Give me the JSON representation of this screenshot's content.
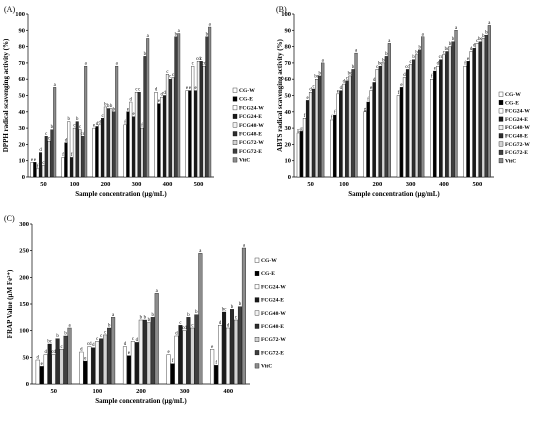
{
  "panel_labels": [
    "(A)",
    "(B)",
    "(C)"
  ],
  "legend": [
    "CG-W",
    "CG-E",
    "FCG24-W",
    "FCG24-E",
    "FCG48-W",
    "FCG48-E",
    "FCG72-W",
    "FCG72-E",
    "VitC"
  ],
  "colors": {
    "CG-W": "#ffffff",
    "CG-E": "#000000",
    "FCG24-W": "#ffffff",
    "FCG24-E": "#1a1a1a",
    "FCG48-W": "#f2f2f2",
    "FCG48-E": "#2e2e2e",
    "FCG72-W": "#d4d4d4",
    "FCG72-E": "#404040",
    "VitC": "#8c8c8c"
  },
  "chart_data": [
    {
      "type": "bar",
      "panel": "(A)",
      "xlabel": "Sample concentration (μg/mL)",
      "ylabel": "DPPH radical scavenging activity (%)",
      "categories": [
        "50",
        "100",
        "200",
        "300",
        "400",
        "500"
      ],
      "ylim": [
        0,
        100
      ],
      "yticks": [
        "0",
        "10",
        "20",
        "30",
        "40",
        "50",
        "60",
        "70",
        "80",
        "90",
        "100"
      ],
      "series": [
        {
          "name": "CG-W",
          "values": [
            9,
            12,
            30,
            32,
            52,
            53
          ],
          "letters": [
            "e",
            "f",
            "e",
            "f",
            "d",
            "e"
          ]
        },
        {
          "name": "CG-E",
          "values": [
            9,
            21,
            31,
            40,
            45,
            53
          ],
          "letters": [
            "e",
            "d",
            "d",
            "e",
            "e",
            "e"
          ]
        },
        {
          "name": "FCG24-W",
          "values": [
            5,
            34,
            32,
            46,
            49,
            68
          ],
          "letters": [
            "f",
            "b",
            "d",
            "d",
            "d",
            "c"
          ]
        },
        {
          "name": "FCG24-E",
          "values": [
            15,
            12,
            36,
            37,
            50,
            53
          ],
          "letters": [
            "d",
            "f",
            "c",
            "e",
            "d",
            "e"
          ]
        },
        {
          "name": "FCG48-W",
          "values": [
            7,
            30,
            43,
            52,
            63,
            71
          ],
          "letters": [
            "c",
            "c",
            "b",
            "c",
            "c",
            "cd"
          ]
        },
        {
          "name": "FCG48-E",
          "values": [
            25,
            34,
            42,
            52,
            60,
            71
          ],
          "letters": [
            "c",
            "b",
            "b",
            "c",
            "c",
            "c"
          ]
        },
        {
          "name": "FCG72-W",
          "values": [
            22,
            29,
            42,
            30,
            61,
            68
          ],
          "letters": [
            "c",
            "c",
            "b",
            "f",
            "c",
            "cd"
          ]
        },
        {
          "name": "FCG72-E",
          "values": [
            29,
            25,
            40,
            74,
            86,
            86
          ],
          "letters": [
            "b",
            "cd",
            "b",
            "b",
            "b",
            "b"
          ]
        },
        {
          "name": "VitC",
          "values": [
            55,
            68,
            68,
            85,
            88,
            92
          ],
          "letters": [
            "a",
            "a",
            "a",
            "a",
            "a",
            "a"
          ]
        }
      ]
    },
    {
      "type": "bar",
      "panel": "(B)",
      "xlabel": "Sample concentration (μg/mL)",
      "ylabel": "ABTS radical scavenging activity (%)",
      "categories": [
        "50",
        "100",
        "200",
        "300",
        "400",
        "500"
      ],
      "ylim": [
        0,
        100
      ],
      "yticks": [
        "0",
        "10",
        "20",
        "30",
        "40",
        "50",
        "60",
        "70",
        "80",
        "90",
        "100"
      ],
      "series": [
        {
          "name": "CG-W",
          "values": [
            27,
            35,
            40,
            50,
            60,
            68
          ],
          "letters": [
            "g",
            "f",
            "g",
            "f",
            "f",
            "f"
          ]
        },
        {
          "name": "CG-E",
          "values": [
            28,
            38,
            46,
            55,
            65,
            71
          ],
          "letters": [
            "g",
            "f",
            "f",
            "e",
            "e",
            "e"
          ]
        },
        {
          "name": "FCG24-W",
          "values": [
            36,
            51,
            53,
            61,
            68,
            77
          ],
          "letters": [
            "f",
            "e",
            "e",
            "d",
            "d",
            "d"
          ]
        },
        {
          "name": "FCG24-E",
          "values": [
            47,
            53,
            58,
            66,
            72,
            79
          ],
          "letters": [
            "e",
            "d",
            "d",
            "cd",
            "cd",
            "d"
          ]
        },
        {
          "name": "FCG48-W",
          "values": [
            52,
            57,
            66,
            69,
            75,
            82
          ],
          "letters": [
            "d",
            "d",
            "c",
            "c",
            "c",
            "c"
          ]
        },
        {
          "name": "FCG48-E",
          "values": [
            54,
            59,
            68,
            72,
            77,
            83
          ],
          "letters": [
            "c",
            "c",
            "bc",
            "b",
            "bc",
            "bc"
          ]
        },
        {
          "name": "FCG72-W",
          "values": [
            60,
            62,
            70,
            75,
            80,
            85
          ],
          "letters": [
            "bc",
            "bc",
            "b",
            "b",
            "b",
            "b"
          ]
        },
        {
          "name": "FCG72-E",
          "values": [
            62,
            66,
            74,
            78,
            83,
            87
          ],
          "letters": [
            "b",
            "b",
            "b",
            "b",
            "b",
            "b"
          ]
        },
        {
          "name": "VitC",
          "values": [
            70,
            76,
            82,
            86,
            90,
            93
          ],
          "letters": [
            "a",
            "a",
            "a",
            "a",
            "a",
            "a"
          ]
        }
      ]
    },
    {
      "type": "bar",
      "panel": "(C)",
      "xlabel": "Sample concentration (μg/mL)",
      "ylabel": "FRAP Value (μM Fe²⁺)",
      "categories": [
        "50",
        "100",
        "200",
        "300",
        "400"
      ],
      "ylim": [
        0,
        300
      ],
      "yticks": [
        "0",
        "50",
        "100",
        "150",
        "200",
        "250",
        "300"
      ],
      "series": [
        {
          "name": "CG-W",
          "values": [
            45,
            60,
            70,
            55,
            65
          ],
          "letters": [
            "d",
            "d",
            "d",
            "e",
            "e"
          ]
        },
        {
          "name": "CG-E",
          "values": [
            33,
            43,
            53,
            38,
            35
          ],
          "letters": [
            "e",
            "e",
            "e",
            "f",
            "f"
          ]
        },
        {
          "name": "FCG24-W",
          "values": [
            55,
            70,
            80,
            90,
            110
          ],
          "letters": [
            "d",
            "cd",
            "c",
            "d",
            "d"
          ]
        },
        {
          "name": "FCG24-E",
          "values": [
            75,
            68,
            78,
            110,
            135
          ],
          "letters": [
            "bc",
            "d",
            "d",
            "c",
            "bc"
          ]
        },
        {
          "name": "FCG48-W",
          "values": [
            55,
            80,
            120,
            100,
            105
          ],
          "letters": [
            "cd",
            "c",
            "b",
            "cd",
            "d"
          ]
        },
        {
          "name": "FCG48-E",
          "values": [
            85,
            85,
            120,
            125,
            140
          ],
          "letters": [
            "b",
            "c",
            "b",
            "b",
            "b"
          ]
        },
        {
          "name": "FCG72-W",
          "values": [
            65,
            92,
            115,
            105,
            120
          ],
          "letters": [
            "c",
            "c",
            "b",
            "c",
            "c"
          ]
        },
        {
          "name": "FCG72-E",
          "values": [
            90,
            105,
            125,
            130,
            145
          ],
          "letters": [
            "b",
            "b",
            "b",
            "b",
            "b"
          ]
        },
        {
          "name": "VitC",
          "values": [
            105,
            125,
            170,
            245,
            255
          ],
          "letters": [
            "a",
            "a",
            "a",
            "a",
            "a"
          ]
        }
      ]
    }
  ]
}
